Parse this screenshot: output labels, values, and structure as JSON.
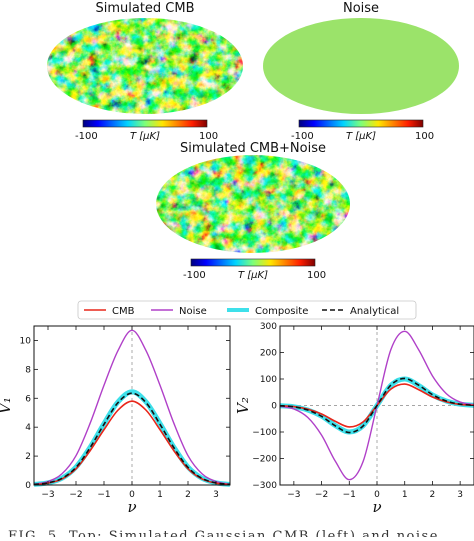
{
  "maps": [
    {
      "title": "Simulated CMB",
      "colorbar": {
        "min": "-100",
        "max": "100",
        "unit": "T [μK]"
      },
      "style": "cmb"
    },
    {
      "title": "Noise",
      "colorbar": {
        "min": "-100",
        "max": "100",
        "unit": "T [μK]"
      },
      "style": "noise"
    },
    {
      "title": "Simulated CMB+Noise",
      "colorbar": {
        "min": "-100",
        "max": "100",
        "unit": "T [μK]"
      },
      "style": "cmb"
    }
  ],
  "colors": {
    "cmb": "#e8261a",
    "noise": "#b040c8",
    "composite": "#3ee0ea",
    "analytical": "#111111",
    "noise_map_fill": "#9be36a"
  },
  "caption_fragment": "FIG. 5. Top: Simulated Gaussian CMB (left) and noise",
  "chart_data": [
    {
      "type": "line",
      "xlabel": "ν",
      "ylabel": "V₁",
      "xlim": [
        -3.5,
        3.5
      ],
      "ylim": [
        0,
        11
      ],
      "xticks": [
        -3,
        -2,
        -1,
        0,
        1,
        2,
        3
      ],
      "yticks": [
        0,
        2,
        4,
        6,
        8,
        10
      ],
      "legend": "top",
      "series": [
        {
          "name": "CMB",
          "x": [
            -3.5,
            -3,
            -2.5,
            -2,
            -1.5,
            -1,
            -0.5,
            0,
            0.5,
            1,
            1.5,
            2,
            2.5,
            3,
            3.5
          ],
          "y": [
            0.03,
            0.13,
            0.42,
            1.12,
            2.36,
            3.83,
            5.18,
            5.8,
            5.18,
            3.83,
            2.36,
            1.12,
            0.42,
            0.13,
            0.03
          ]
        },
        {
          "name": "Noise",
          "x": [
            -3.5,
            -3,
            -2.5,
            -2,
            -1.5,
            -1,
            -0.5,
            0,
            0.5,
            1,
            1.5,
            2,
            2.5,
            3,
            3.5
          ],
          "y": [
            0.05,
            0.24,
            0.78,
            2.03,
            4.25,
            6.9,
            9.3,
            10.7,
            9.3,
            6.9,
            4.25,
            2.03,
            0.78,
            0.24,
            0.05
          ]
        },
        {
          "name": "Composite",
          "x": [
            -3.5,
            -3,
            -2.5,
            -2,
            -1.5,
            -1,
            -0.5,
            0,
            0.5,
            1,
            1.5,
            2,
            2.5,
            3,
            3.5
          ],
          "y": [
            0.04,
            0.15,
            0.47,
            1.24,
            2.6,
            4.25,
            5.75,
            6.45,
            5.75,
            4.25,
            2.6,
            1.24,
            0.47,
            0.15,
            0.04
          ]
        },
        {
          "name": "Analytical",
          "x": [
            -3.5,
            -3,
            -2.5,
            -2,
            -1.5,
            -1,
            -0.5,
            0,
            0.5,
            1,
            1.5,
            2,
            2.5,
            3,
            3.5
          ],
          "y": [
            0.04,
            0.15,
            0.46,
            1.22,
            2.57,
            4.2,
            5.7,
            6.35,
            5.7,
            4.2,
            2.57,
            1.22,
            0.46,
            0.15,
            0.04
          ]
        }
      ]
    },
    {
      "type": "line",
      "xlabel": "ν",
      "ylabel": "V₂",
      "xlim": [
        -3.5,
        3.5
      ],
      "ylim": [
        -300,
        300
      ],
      "xticks": [
        -3,
        -2,
        -1,
        0,
        1,
        2,
        3
      ],
      "yticks": [
        -300,
        -200,
        -100,
        0,
        100,
        200,
        300
      ],
      "legend": "top",
      "series": [
        {
          "name": "CMB",
          "x": [
            -3.5,
            -3,
            -2.5,
            -2,
            -1.5,
            -1,
            -0.5,
            0,
            0.5,
            1,
            1.5,
            2,
            2.5,
            3,
            3.5
          ],
          "y": [
            -1,
            -4,
            -14,
            -32,
            -60,
            -81,
            -62,
            0,
            62,
            81,
            60,
            32,
            14,
            4,
            1
          ]
        },
        {
          "name": "Noise",
          "x": [
            -3.5,
            -3,
            -2.5,
            -2,
            -1.5,
            -1,
            -0.5,
            0,
            0.5,
            1,
            1.5,
            2,
            2.5,
            3,
            3.5
          ],
          "y": [
            -3,
            -13,
            -45,
            -112,
            -211,
            -280,
            -211,
            0,
            211,
            280,
            211,
            112,
            45,
            13,
            3
          ]
        },
        {
          "name": "Composite",
          "x": [
            -3.5,
            -3,
            -2.5,
            -2,
            -1.5,
            -1,
            -0.5,
            0,
            0.5,
            1,
            1.5,
            2,
            2.5,
            3,
            3.5
          ],
          "y": [
            -1,
            -5,
            -17,
            -40,
            -76,
            -100,
            -76,
            0,
            76,
            100,
            76,
            40,
            17,
            5,
            1
          ]
        },
        {
          "name": "Analytical",
          "x": [
            -3.5,
            -3,
            -2.5,
            -2,
            -1.5,
            -1,
            -0.5,
            0,
            0.5,
            1,
            1.5,
            2,
            2.5,
            3,
            3.5
          ],
          "y": [
            -1,
            -5,
            -17,
            -41,
            -77,
            -102,
            -77,
            0,
            77,
            102,
            77,
            41,
            17,
            5,
            1
          ]
        }
      ]
    }
  ]
}
